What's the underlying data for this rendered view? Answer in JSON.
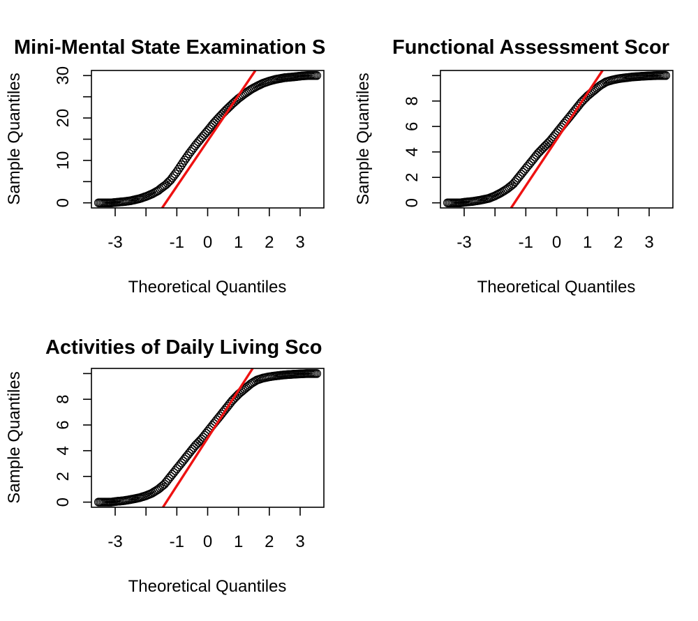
{
  "chart_data": [
    {
      "type": "scatter",
      "subtype": "qq-normal",
      "title": "Mini-Mental State Examination S",
      "xlabel": "Theoretical Quantiles",
      "ylabel": "Sample Quantiles",
      "xlim": [
        -3.77,
        3.77
      ],
      "ylim": [
        -1.2,
        31.2
      ],
      "x_ticks": [
        -3,
        -2,
        -1,
        0,
        1,
        2,
        3
      ],
      "x_tick_labels": [
        "-3",
        "",
        "-1",
        "0",
        "1",
        "2",
        "3"
      ],
      "y_ticks": [
        0,
        5,
        10,
        15,
        20,
        25,
        30
      ],
      "y_tick_labels": [
        "0",
        "",
        "10",
        "",
        "20",
        "",
        "30"
      ],
      "ref_line": {
        "slope": 10.71,
        "intercept": 14.61,
        "color": "#ee1111"
      },
      "points": {
        "x": [
          -3.54,
          -3.25,
          -3.12,
          -2.98,
          -2.85,
          -2.7,
          -2.5,
          -2.2,
          -2.0,
          -1.8,
          -1.6,
          -1.5,
          -1.35,
          -1.2,
          -1.0,
          -0.8,
          -0.6,
          -0.4,
          -0.2,
          0.0,
          0.2,
          0.4,
          0.6,
          0.8,
          1.0,
          1.2,
          1.4,
          1.6,
          1.8,
          2.0,
          2.2,
          2.5,
          2.8,
          2.98,
          3.12,
          3.25,
          3.54
        ],
        "y": [
          0.0,
          0.0,
          0.0,
          0.1,
          0.2,
          0.3,
          0.5,
          1.0,
          1.5,
          2.1,
          2.9,
          3.5,
          4.3,
          5.4,
          7.3,
          9.5,
          11.6,
          13.5,
          15.3,
          17.0,
          18.8,
          20.4,
          21.9,
          23.3,
          24.6,
          25.7,
          26.7,
          27.5,
          28.2,
          28.7,
          29.1,
          29.5,
          29.7,
          29.85,
          29.95,
          30.0,
          30.0
        ]
      }
    },
    {
      "type": "scatter",
      "subtype": "qq-normal",
      "title": "Functional Assessment Scor",
      "xlabel": "Theoretical Quantiles",
      "ylabel": "Sample Quantiles",
      "xlim": [
        -3.77,
        3.77
      ],
      "ylim": [
        -0.4,
        10.4
      ],
      "x_ticks": [
        -3,
        -2,
        -1,
        0,
        1,
        2,
        3
      ],
      "x_tick_labels": [
        "-3",
        "",
        "-1",
        "0",
        "1",
        "2",
        "3"
      ],
      "y_ticks": [
        0,
        2,
        4,
        6,
        8,
        10
      ],
      "y_tick_labels": [
        "0",
        "2",
        "4",
        "6",
        "8",
        ""
      ],
      "ref_line": {
        "slope": 3.64,
        "intercept": 4.98,
        "color": "#ee1111"
      },
      "points": {
        "x": [
          -3.54,
          -3.25,
          -3.12,
          -2.98,
          -2.85,
          -2.7,
          -2.5,
          -2.2,
          -2.0,
          -1.8,
          -1.6,
          -1.4,
          -1.2,
          -1.0,
          -0.8,
          -0.6,
          -0.4,
          -0.2,
          0.0,
          0.2,
          0.4,
          0.6,
          0.8,
          1.0,
          1.2,
          1.4,
          1.6,
          1.8,
          2.0,
          2.2,
          2.5,
          2.8,
          2.98,
          3.12,
          3.25,
          3.54
        ],
        "y": [
          0.0,
          0.0,
          0.0,
          0.05,
          0.08,
          0.12,
          0.2,
          0.35,
          0.55,
          0.8,
          1.1,
          1.5,
          2.1,
          2.7,
          3.3,
          3.9,
          4.4,
          4.9,
          5.5,
          6.1,
          6.7,
          7.3,
          7.9,
          8.4,
          8.8,
          9.2,
          9.5,
          9.65,
          9.75,
          9.82,
          9.9,
          9.95,
          9.97,
          9.99,
          10.0,
          10.0
        ]
      }
    },
    {
      "type": "scatter",
      "subtype": "qq-normal",
      "title": "Activities of Daily Living Sco",
      "xlabel": "Theoretical Quantiles",
      "ylabel": "Sample Quantiles",
      "xlim": [
        -3.77,
        3.77
      ],
      "ylim": [
        -0.4,
        10.4
      ],
      "x_ticks": [
        -3,
        -2,
        -1,
        0,
        1,
        2,
        3
      ],
      "x_tick_labels": [
        "-3",
        "",
        "-1",
        "0",
        "1",
        "2",
        "3"
      ],
      "y_ticks": [
        0,
        2,
        4,
        6,
        8,
        10
      ],
      "y_tick_labels": [
        "0",
        "2",
        "4",
        "6",
        "8",
        ""
      ],
      "ref_line": {
        "slope": 3.71,
        "intercept": 4.98,
        "color": "#ee1111"
      },
      "points": {
        "x": [
          -3.54,
          -3.25,
          -3.12,
          -2.98,
          -2.85,
          -2.7,
          -2.5,
          -2.2,
          -2.0,
          -1.8,
          -1.6,
          -1.4,
          -1.2,
          -1.0,
          -0.8,
          -0.6,
          -0.4,
          -0.2,
          0.0,
          0.2,
          0.4,
          0.6,
          0.8,
          1.0,
          1.2,
          1.4,
          1.6,
          1.8,
          2.0,
          2.2,
          2.5,
          2.8,
          2.98,
          3.12,
          3.25,
          3.54
        ],
        "y": [
          0.0,
          0.0,
          0.0,
          0.05,
          0.08,
          0.12,
          0.2,
          0.35,
          0.5,
          0.7,
          1.0,
          1.4,
          2.0,
          2.6,
          3.2,
          3.8,
          4.4,
          4.9,
          5.5,
          6.1,
          6.7,
          7.3,
          7.9,
          8.4,
          8.8,
          9.2,
          9.5,
          9.65,
          9.75,
          9.82,
          9.9,
          9.95,
          9.97,
          9.99,
          10.0,
          10.0
        ]
      }
    }
  ]
}
